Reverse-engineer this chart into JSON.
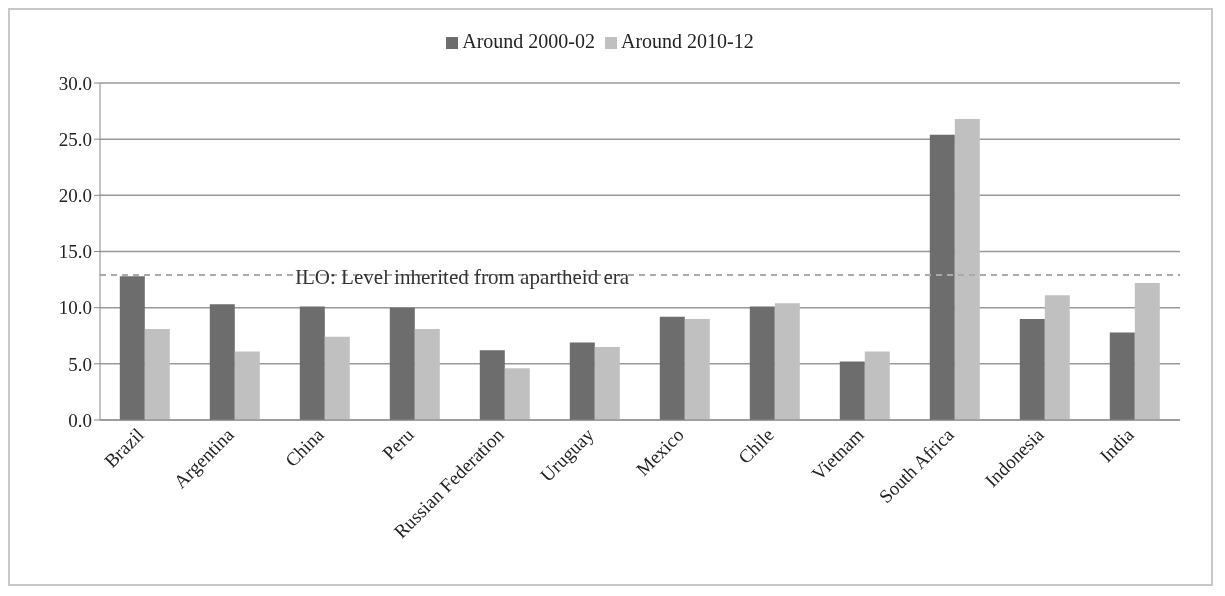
{
  "chart_data": {
    "type": "bar",
    "categories": [
      "Brazil",
      "Argentina",
      "China",
      "Peru",
      "Russian Federation",
      "Uruguay",
      "Mexico",
      "Chile",
      "Vietnam",
      "South Africa",
      "Indonesia",
      "India"
    ],
    "series": [
      {
        "name": "Around 2000-02",
        "color": "#6d6d6d",
        "values": [
          12.8,
          10.3,
          10.1,
          10.0,
          6.2,
          6.9,
          9.2,
          10.1,
          5.2,
          25.4,
          9.0,
          7.8
        ]
      },
      {
        "name": "Around 2010-12",
        "color": "#c0c0c0",
        "values": [
          8.1,
          6.1,
          7.4,
          8.1,
          4.6,
          6.5,
          9.0,
          10.4,
          6.1,
          26.8,
          11.1,
          12.2
        ]
      }
    ],
    "ylim": [
      0,
      30
    ],
    "yticks": [
      {
        "value": 0,
        "label": "0.0"
      },
      {
        "value": 5,
        "label": "5.0"
      },
      {
        "value": 10,
        "label": "10.0"
      },
      {
        "value": 15,
        "label": "15.0"
      },
      {
        "value": 20,
        "label": "20.0"
      },
      {
        "value": 25,
        "label": "25.0"
      },
      {
        "value": 30,
        "label": "30.0"
      }
    ],
    "grid": "y",
    "legend": "top",
    "ref_lines": [
      {
        "axis": "y",
        "value": 12.9,
        "label": "ILO: Level inherited from apartheid era",
        "color": "#aaaaaa",
        "line_style": "dashed"
      }
    ]
  }
}
